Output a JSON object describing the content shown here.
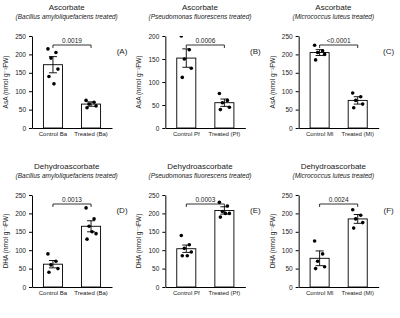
{
  "chart_data": [
    {
      "type": "bar",
      "title": "Ascorbate",
      "subtitle": "(Bacillus amyloliquefaciens treated)",
      "panel_label": "(A)",
      "y_label": "AsA (nmol g⁻¹FW)",
      "categories": [
        "Control Ba",
        "Treated (Ba)"
      ],
      "values": [
        172,
        65
      ],
      "errors": [
        22,
        6
      ],
      "points": [
        [
          215,
          205,
          190,
          160,
          140,
          120
        ],
        [
          75,
          70,
          65,
          60,
          55
        ]
      ],
      "p_value": "0.0019",
      "color": "#ffffff",
      "ylim": [
        0,
        250
      ],
      "yticks": [
        0,
        50,
        100,
        150,
        200,
        250
      ]
    },
    {
      "type": "bar",
      "title": "Ascorbate",
      "subtitle": "(Pseudomonas fluorescens treated)",
      "panel_label": "(B)",
      "y_label": "AsA (nmol g⁻¹FW)",
      "categories": [
        "Control Pf",
        "Treated (Pf)"
      ],
      "values": [
        152,
        55
      ],
      "errors": [
        20,
        8
      ],
      "points": [
        [
          200,
          170,
          150,
          130,
          110
        ],
        [
          75,
          60,
          55,
          45,
          40
        ]
      ],
      "p_value": "0.0006",
      "color": "#ffffff",
      "ylim": [
        0,
        200
      ],
      "yticks": [
        0,
        50,
        100,
        150,
        200
      ]
    },
    {
      "type": "bar",
      "title": "Ascorbate",
      "subtitle": "(Micrococcus luteus treated)",
      "panel_label": "(C)",
      "y_label": "AsA (nmol g⁻¹FW)",
      "categories": [
        "Control Ml",
        "Treated (Ml)"
      ],
      "values": [
        205,
        75
      ],
      "errors": [
        8,
        10
      ],
      "points": [
        [
          225,
          210,
          205,
          200,
          185
        ],
        [
          95,
          85,
          75,
          65,
          55
        ]
      ],
      "p_value": "<0.0001",
      "color": "#ffffff",
      "ylim": [
        0,
        250
      ],
      "yticks": [
        0,
        50,
        100,
        150,
        200,
        250
      ]
    },
    {
      "type": "bar",
      "title": "Dehydroascorbate",
      "subtitle": "(Bacillus amyloliquefaciens treated)",
      "panel_label": "(D)",
      "y_label": "DHA (nmol g⁻¹FW)",
      "categories": [
        "Control Ba",
        "Treated (Ba)"
      ],
      "values": [
        62,
        165
      ],
      "errors": [
        10,
        15
      ],
      "points": [
        [
          90,
          70,
          60,
          50,
          40
        ],
        [
          215,
          185,
          165,
          145,
          130,
          150
        ]
      ],
      "p_value": "0.0013",
      "color": "#ffffff",
      "ylim": [
        0,
        250
      ],
      "yticks": [
        0,
        50,
        100,
        150,
        200,
        250
      ]
    },
    {
      "type": "bar",
      "title": "Dehydroascorbate",
      "subtitle": "(Pseudomonas fluorescens treated)",
      "panel_label": "(E)",
      "y_label": "DHA (nmol g⁻¹FW)",
      "categories": [
        "Control Pf",
        "Treated (Pf)"
      ],
      "values": [
        104,
        208
      ],
      "errors": [
        10,
        10
      ],
      "points": [
        [
          140,
          115,
          105,
          95,
          85,
          85
        ],
        [
          230,
          220,
          205,
          200,
          190,
          200
        ]
      ],
      "p_value": "0.0003",
      "color": "#ffffff",
      "ylim": [
        0,
        250
      ],
      "yticks": [
        0,
        50,
        100,
        150,
        200,
        250
      ]
    },
    {
      "type": "bar",
      "title": "Dehydroascorbate",
      "subtitle": "(Micrococcus luteus treated)",
      "panel_label": "(F)",
      "y_label": "DHA (nmol g⁻¹FW)",
      "categories": [
        "Control Ml",
        "Treated (Ml)"
      ],
      "values": [
        78,
        185
      ],
      "errors": [
        20,
        12
      ],
      "points": [
        [
          125,
          90,
          70,
          55,
          50
        ],
        [
          210,
          195,
          185,
          175,
          160
        ]
      ],
      "p_value": "0.0024",
      "color": "#ffffff",
      "ylim": [
        0,
        250
      ],
      "yticks": [
        0,
        50,
        100,
        150,
        200,
        250
      ]
    }
  ]
}
